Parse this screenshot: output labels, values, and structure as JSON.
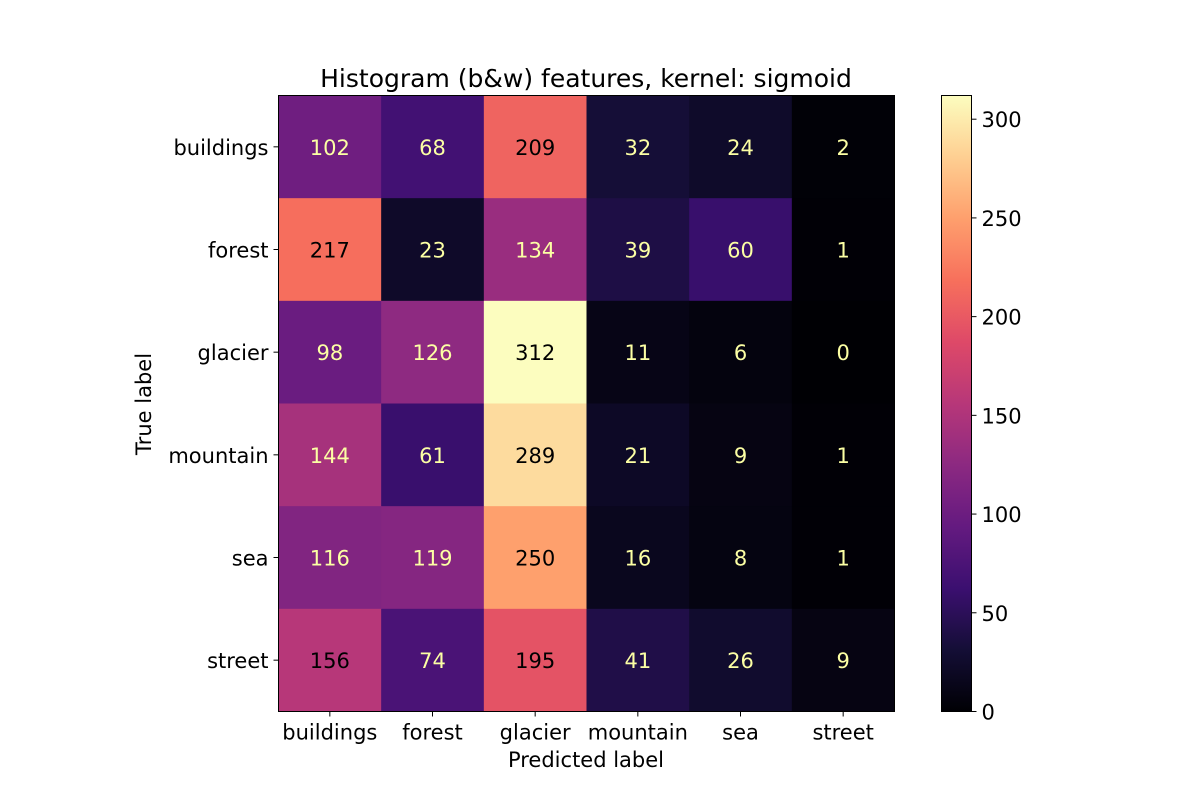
{
  "chart_data": {
    "type": "heatmap",
    "title": "Histogram (b&w) features, kernel: sigmoid",
    "xlabel": "Predicted label",
    "ylabel": "True label",
    "x_categories": [
      "buildings",
      "forest",
      "glacier",
      "mountain",
      "sea",
      "street"
    ],
    "y_categories": [
      "buildings",
      "forest",
      "glacier",
      "mountain",
      "sea",
      "street"
    ],
    "values": [
      [
        102,
        68,
        209,
        32,
        24,
        2
      ],
      [
        217,
        23,
        134,
        39,
        60,
        1
      ],
      [
        98,
        126,
        312,
        11,
        6,
        0
      ],
      [
        144,
        61,
        289,
        21,
        9,
        1
      ],
      [
        116,
        119,
        250,
        16,
        8,
        1
      ],
      [
        156,
        74,
        195,
        41,
        26,
        9
      ]
    ],
    "colormap": "magma",
    "vmin": 0,
    "vmax": 312,
    "colorbar_ticks": [
      0,
      50,
      100,
      150,
      200,
      250,
      300
    ],
    "text_color_light": "#fcffa4",
    "text_color_dark": "#000000"
  }
}
